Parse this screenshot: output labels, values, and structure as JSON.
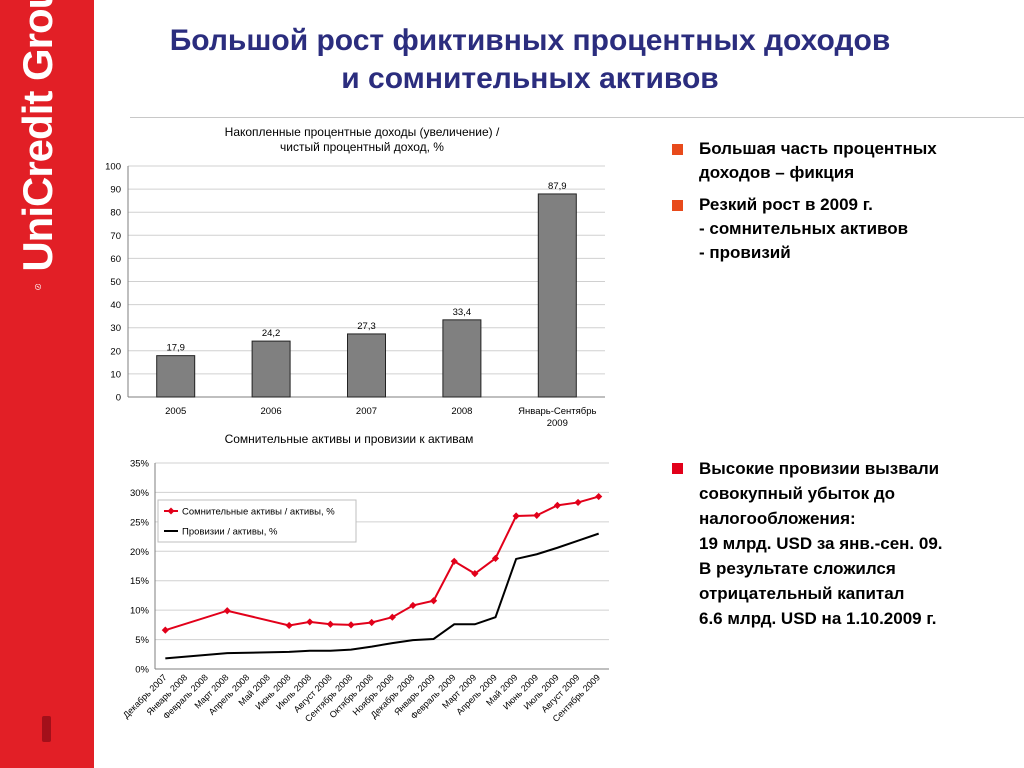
{
  "brand": {
    "name": "UniCredit Group",
    "color": "#e21f26"
  },
  "slide_title": {
    "line1": "Большой рост фиктивных процентных доходов",
    "line2": "и сомнительных активов"
  },
  "bullets_top": [
    {
      "text": "Большая часть процентных\nдоходов – фикция",
      "color": "#e84a1b"
    },
    {
      "text": "Резкий рост в 2009 г.\n- сомнительных активов\n- провизий",
      "color": "#e84a1b"
    }
  ],
  "bullets_bottom": [
    {
      "text": "Высокие провизии вызвали\nсовокупный убыток до\nналогообложения:\n19 млрд. USD за янв.-сен. 09.\nВ результате сложился\nотрицательный капитал\n6.6 млрд. USD на 1.10.2009 г.",
      "color": "#e2001a"
    }
  ],
  "chart_data": [
    {
      "type": "bar",
      "title": "Накопленные процентные доходы (увеличение) /\nчистый процентный доход, %",
      "categories": [
        "2005",
        "2006",
        "2007",
        "2008",
        "Январь-Сентябрь\n2009"
      ],
      "values": [
        17.9,
        24.2,
        27.3,
        33.4,
        87.9
      ],
      "value_labels": [
        "17,9",
        "24,2",
        "27,3",
        "33,4",
        "87,9"
      ],
      "yticks": [
        "0",
        "10",
        "20",
        "30",
        "40",
        "50",
        "60",
        "70",
        "80",
        "90",
        "100"
      ],
      "ylim": [
        0,
        100
      ],
      "grid": true,
      "bar_color": "#808080"
    },
    {
      "type": "line",
      "title": "Сомнительные активы и провизии к активам",
      "categories": [
        "Декабрь 2007",
        "Январь 2008",
        "Февраль 2008",
        "Март 2008",
        "Апрель 2008",
        "Май 2008",
        "Июнь 2008",
        "Июль 2008",
        "Август 2008",
        "Сентябрь 2008",
        "Октябрь 2008",
        "Ноябрь 2008",
        "Декабрь 2008",
        "Январь 2009",
        "Февраль 2009",
        "Март 2009",
        "Апрель 2009",
        "Май 2009",
        "Июнь 2009",
        "Июль 2009",
        "Август 2009",
        "Сентябрь 2009"
      ],
      "yticks": [
        "0%",
        "5%",
        "10%",
        "15%",
        "20%",
        "25%",
        "30%",
        "35%"
      ],
      "ylim": [
        0,
        35
      ],
      "grid": true,
      "legend": "top-left",
      "series": [
        {
          "name": "Сомнительные активы / активы, %",
          "color": "#e2001a",
          "marker": "diamond",
          "values": [
            6.6,
            null,
            null,
            9.9,
            null,
            null,
            7.4,
            8.0,
            7.6,
            7.5,
            7.9,
            8.8,
            10.8,
            11.6,
            18.3,
            16.2,
            18.8,
            26.0,
            26.1,
            27.8,
            28.3,
            29.3
          ]
        },
        {
          "name": "Провизии / активы, %",
          "color": "#000000",
          "marker": "none",
          "values": [
            1.8,
            null,
            null,
            2.7,
            null,
            null,
            2.9,
            3.1,
            3.1,
            3.3,
            3.8,
            4.4,
            4.9,
            5.1,
            7.6,
            7.6,
            8.8,
            18.7,
            19.5,
            20.6,
            21.8,
            23.0
          ]
        }
      ]
    }
  ]
}
